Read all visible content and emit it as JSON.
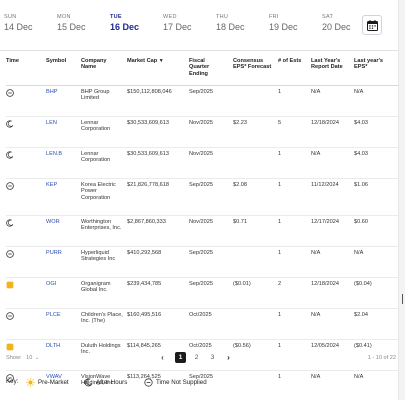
{
  "days": [
    {
      "name": "SUN",
      "date": "14 Dec",
      "active": false
    },
    {
      "name": "MON",
      "date": "15 Dec",
      "active": false
    },
    {
      "name": "TUE",
      "date": "16 Dec",
      "active": true
    },
    {
      "name": "WED",
      "date": "17 Dec",
      "active": false
    },
    {
      "name": "THU",
      "date": "18 Dec",
      "active": false
    },
    {
      "name": "FRI",
      "date": "19 Dec",
      "active": false
    },
    {
      "name": "SAT",
      "date": "20 Dec",
      "active": false
    }
  ],
  "calendar_icon": "calendar-icon",
  "columns": {
    "time": "Time",
    "symbol": "Symbol",
    "company": "Company Name",
    "market_cap": "Market Cap",
    "fiscal": "Fiscal Quarter Ending",
    "consensus": "Consensus EPS* Forecast",
    "ests": "# of Ests",
    "last_report": "Last Year's Report Date",
    "last_eps": "Last year's EPS*"
  },
  "rows": [
    {
      "time_icon": "time-not-supplied-icon",
      "symbol": "BHP",
      "company": "BHP Group Limited",
      "market_cap": "$150,112,808,046",
      "fiscal": "Sep/2025",
      "consensus": "",
      "ests": "1",
      "last_report": "N/A",
      "last_eps": "N/A"
    },
    {
      "time_icon": "after-hours-icon",
      "symbol": "LEN",
      "company": "Lennar Corporation",
      "market_cap": "$30,533,609,613",
      "fiscal": "Nov/2025",
      "consensus": "$2.23",
      "ests": "5",
      "last_report": "12/18/2024",
      "last_eps": "$4.03"
    },
    {
      "time_icon": "after-hours-icon",
      "symbol": "LEN.B",
      "company": "Lennar Corporation",
      "market_cap": "$30,533,609,613",
      "fiscal": "Nov/2025",
      "consensus": "",
      "ests": "1",
      "last_report": "N/A",
      "last_eps": "$4.03"
    },
    {
      "time_icon": "time-not-supplied-icon",
      "symbol": "KEP",
      "company": "Korea Electric Power Corporation",
      "market_cap": "$21,826,778,618",
      "fiscal": "Sep/2025",
      "consensus": "$2.08",
      "ests": "1",
      "last_report": "11/12/2024",
      "last_eps": "$1.06"
    },
    {
      "time_icon": "after-hours-icon",
      "symbol": "WOR",
      "company": "Worthington Enterprises, Inc.",
      "market_cap": "$2,867,860,333",
      "fiscal": "Nov/2025",
      "consensus": "$0.71",
      "ests": "1",
      "last_report": "12/17/2024",
      "last_eps": "$0.60"
    },
    {
      "time_icon": "time-not-supplied-icon",
      "symbol": "PURR",
      "company": "Hyperliquid Strategies Inc",
      "market_cap": "$410,292,568",
      "fiscal": "Sep/2025",
      "consensus": "",
      "ests": "1",
      "last_report": "N/A",
      "last_eps": "N/A"
    },
    {
      "time_icon": "pre-market-icon",
      "symbol": "OGI",
      "company": "Organigram Global Inc.",
      "market_cap": "$239,434,785",
      "fiscal": "Sep/2025",
      "consensus": "($0.01)",
      "ests": "2",
      "last_report": "12/18/2024",
      "last_eps": "($0.04)"
    },
    {
      "time_icon": "time-not-supplied-icon",
      "symbol": "PLCE",
      "company": "Children's Place, Inc. (The)",
      "market_cap": "$160,495,516",
      "fiscal": "Oct/2025",
      "consensus": "",
      "ests": "1",
      "last_report": "N/A",
      "last_eps": "$2.04"
    },
    {
      "time_icon": "pre-market-icon",
      "symbol": "DLTH",
      "company": "Duluth Holdings Inc.",
      "market_cap": "$114,845,265",
      "fiscal": "Oct/2025",
      "consensus": "($0.56)",
      "ests": "1",
      "last_report": "12/05/2024",
      "last_eps": "($0.41)"
    },
    {
      "time_icon": "time-not-supplied-icon",
      "symbol": "VWAV",
      "company": "VisionWave Holdings, Inc.",
      "market_cap": "$113,264,525",
      "fiscal": "Sep/2025",
      "consensus": "",
      "ests": "1",
      "last_report": "N/A",
      "last_eps": "N/A"
    }
  ],
  "footer": {
    "show_label": "Show:",
    "show_value": "10",
    "pages": [
      "1",
      "2",
      "3"
    ],
    "current_page": "1",
    "range_text": "1 - 10 of 22"
  },
  "key": {
    "label": "Key:",
    "pre_market": "Pre-Market",
    "after_hours": "After Hours",
    "not_supplied": "Time Not Supplied"
  },
  "colors": {
    "active_day": "#1e2a8a",
    "symbol_link": "#2a4db5",
    "pre_market": "#f2b41c"
  }
}
